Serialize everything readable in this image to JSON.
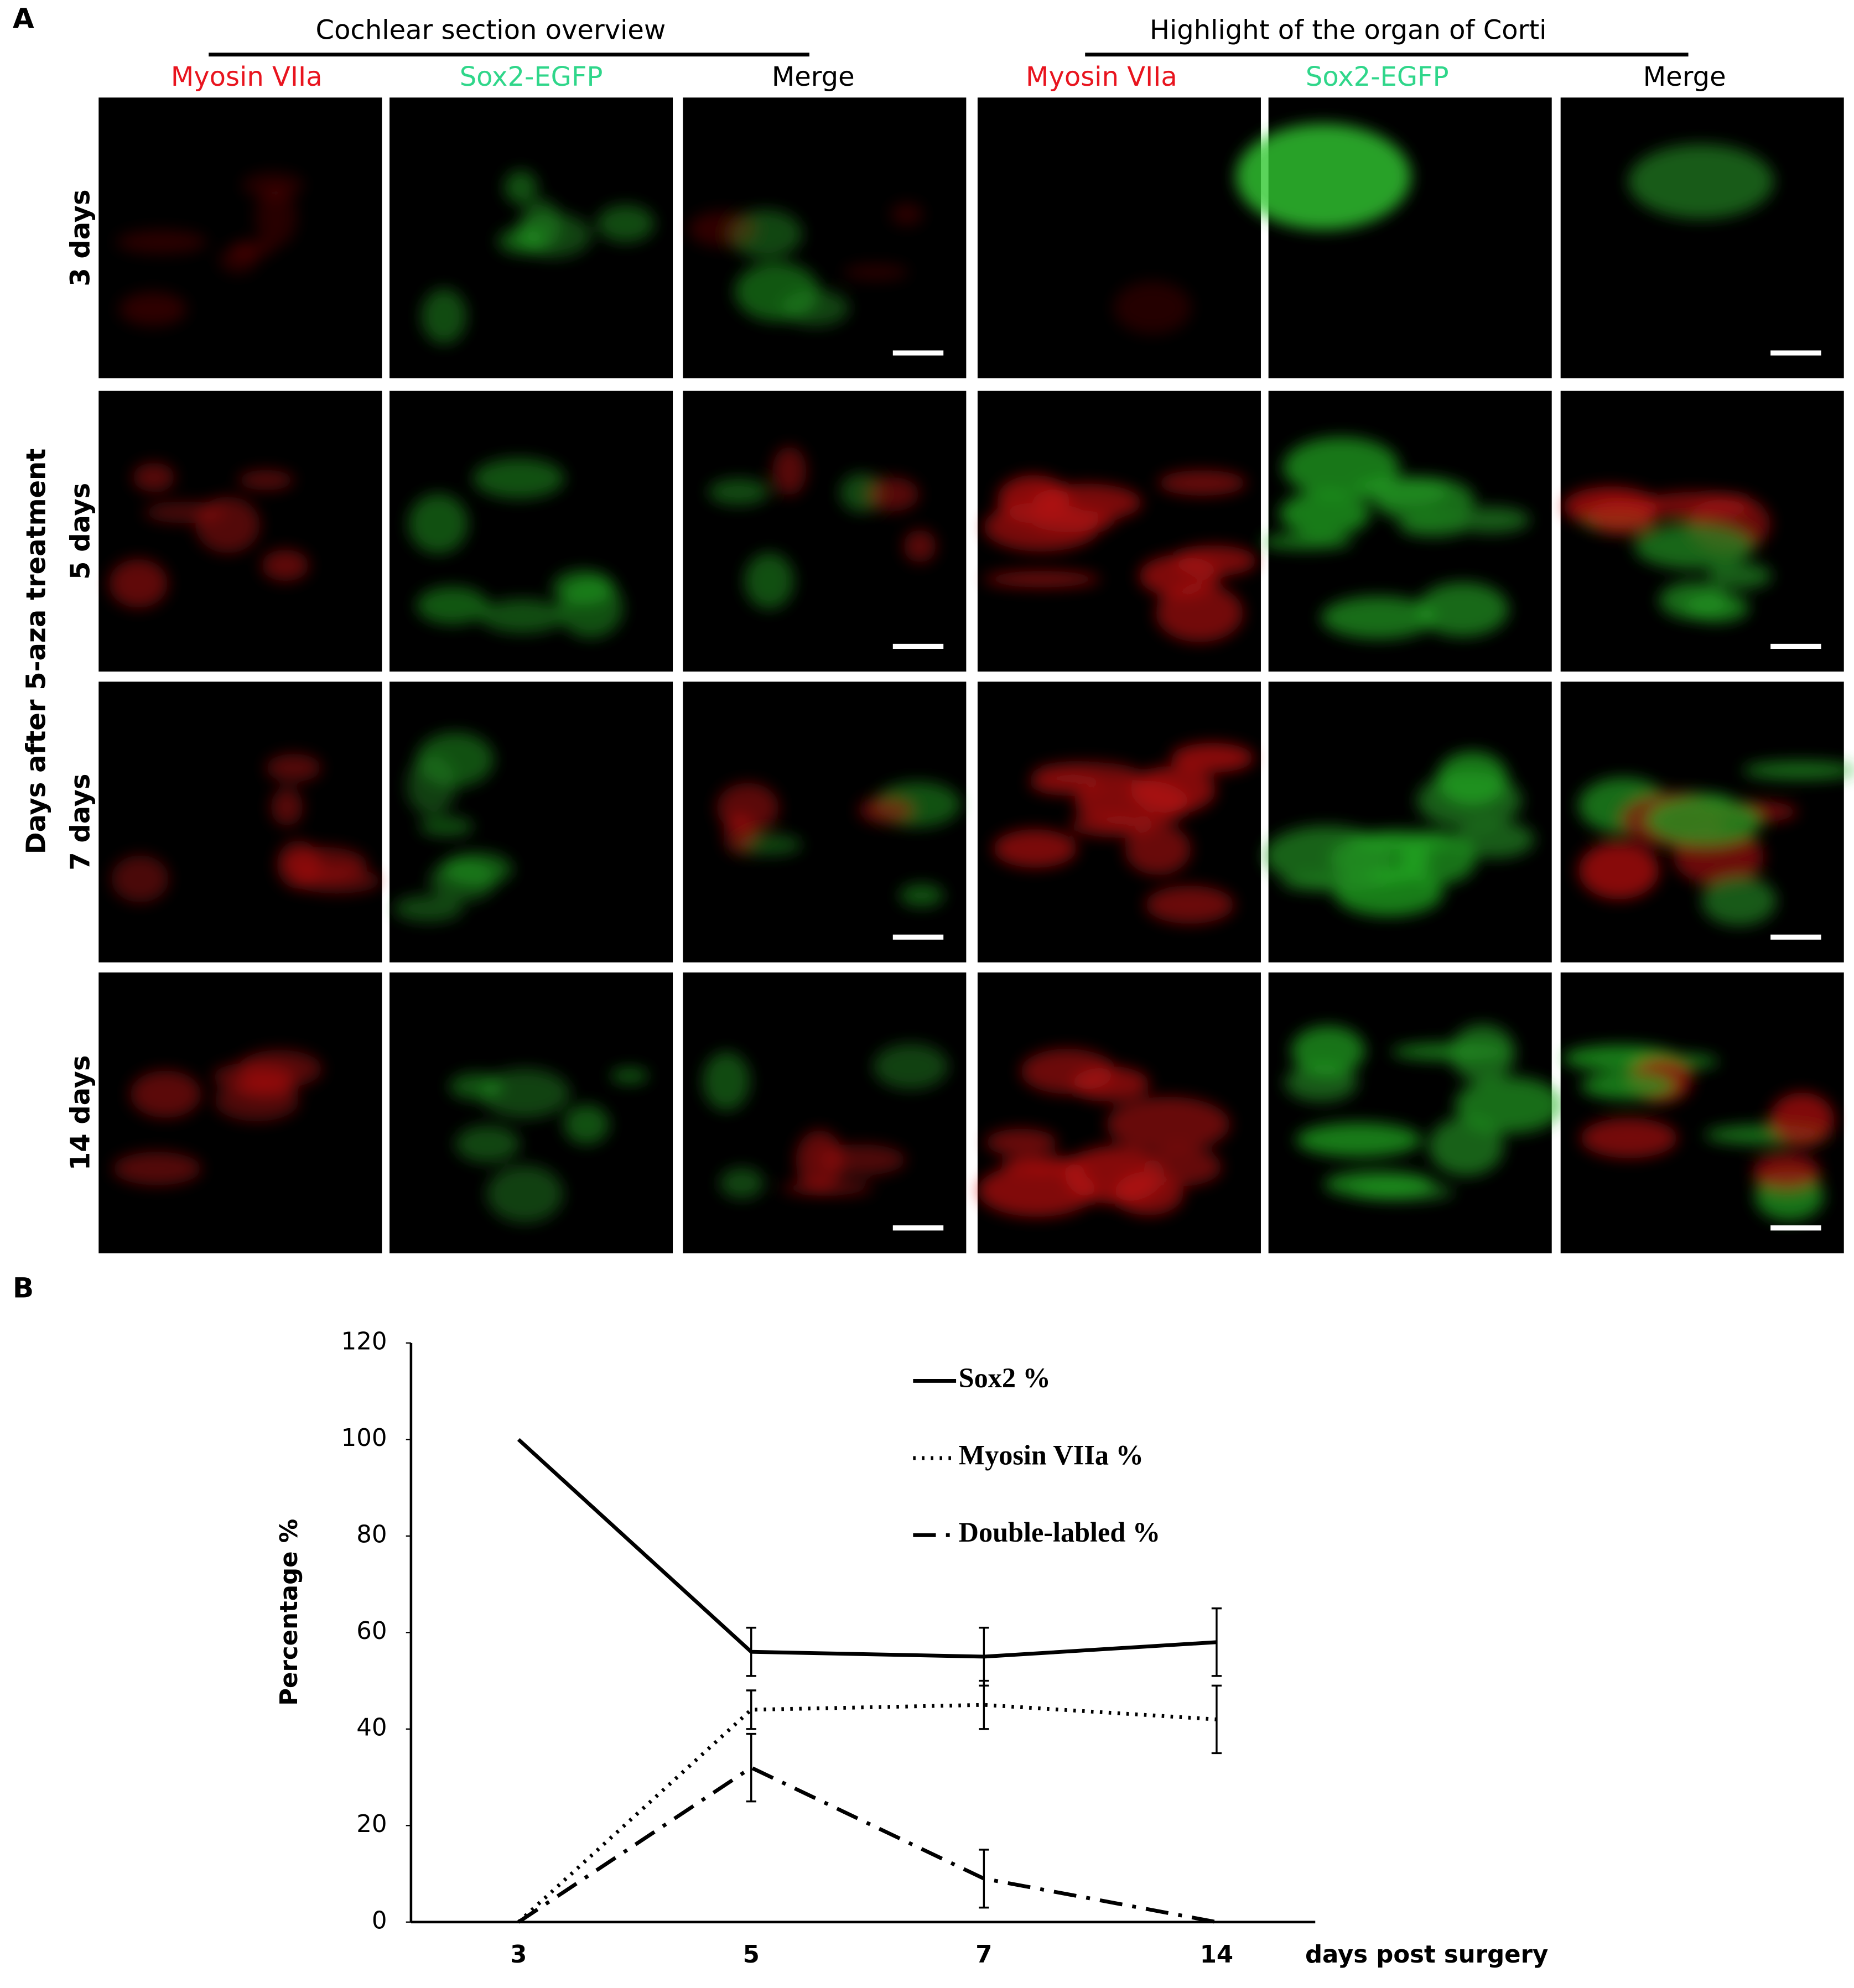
{
  "panel_a": {
    "label": "A",
    "groups": [
      {
        "title": "Cochlear section overview",
        "channels": [
          "Myosin VIIa",
          "Sox2-EGFP",
          "Merge"
        ]
      },
      {
        "title": "Highlight of the organ of Corti",
        "channels": [
          "Myosin VIIa",
          "Sox2-EGFP",
          "Merge"
        ]
      }
    ],
    "row_axis_title": "Days after 5-aza treatment",
    "rows": [
      "3 days",
      "5 days",
      "7 days",
      "14 days"
    ]
  },
  "chart_data": {
    "type": "line",
    "panel_label": "B",
    "categories": [
      "3",
      "5",
      "7",
      "14"
    ],
    "x_label": "days post surgery",
    "y_label": "Percentage %",
    "ylim": [
      0,
      120
    ],
    "yticks": [
      0,
      20,
      40,
      60,
      80,
      100,
      120
    ],
    "legend": "top-right",
    "series": [
      {
        "name": "Sox2 %",
        "color": "#000000",
        "dash": "solid",
        "values": [
          100,
          56,
          55,
          58
        ],
        "errors": [
          null,
          5,
          6,
          7
        ]
      },
      {
        "name": "Myosin VIIa %",
        "color": "#000000",
        "dash": "dotted",
        "values": [
          0,
          44,
          45,
          42
        ],
        "errors": [
          null,
          4,
          5,
          7
        ]
      },
      {
        "name": "Double-labled %",
        "color": "#000000",
        "dash": "dashdot",
        "values": [
          0,
          32,
          9,
          0
        ],
        "errors": [
          null,
          7,
          6,
          null
        ]
      }
    ]
  }
}
